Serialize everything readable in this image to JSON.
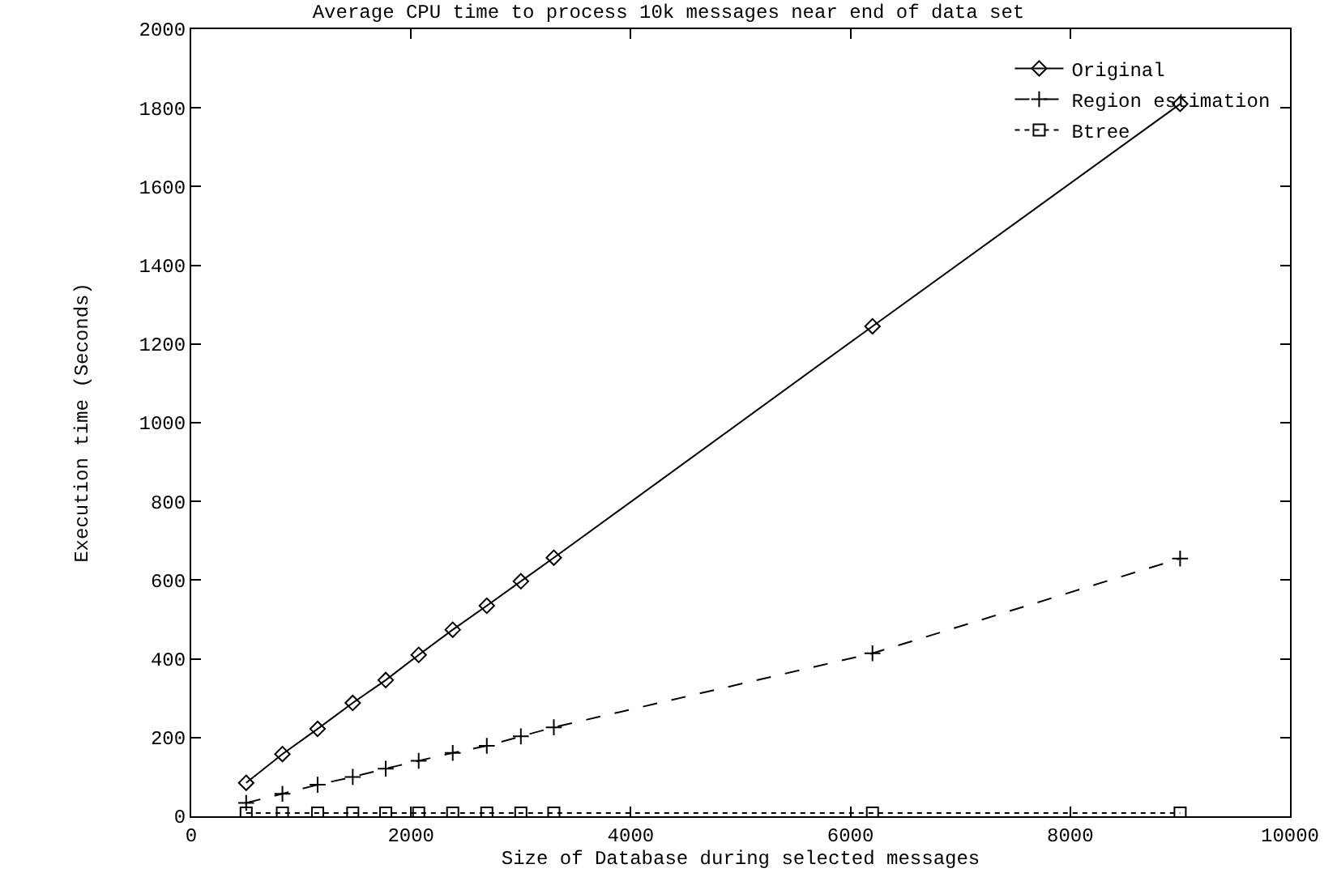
{
  "chart_data": {
    "type": "line",
    "title": "Average CPU time to process 10k messages near end of data set",
    "xlabel": "Size of Database during selected messages",
    "ylabel": "Execution time (Seconds)",
    "x": [
      500,
      830,
      1150,
      1470,
      1770,
      2070,
      2380,
      2690,
      3000,
      3300,
      6200,
      9000
    ],
    "series": [
      {
        "name": "Original",
        "color": "#000000",
        "marker": "diamond",
        "line_style": "solid",
        "values": [
          85,
          158,
          222,
          288,
          346,
          410,
          474,
          535,
          597,
          657,
          1245,
          1810
        ]
      },
      {
        "name": "Region estimation",
        "color": "#000000",
        "marker": "cross",
        "line_style": "dashed",
        "values": [
          34,
          57,
          80,
          100,
          121,
          141,
          161,
          179,
          203,
          226,
          414,
          655
        ]
      },
      {
        "name": "Btree",
        "color": "#000000",
        "marker": "square",
        "line_style": "dotted",
        "values": [
          8,
          8,
          8,
          8,
          8,
          8,
          8,
          8,
          8,
          8,
          8,
          8
        ]
      }
    ],
    "xlim": [
      0,
      10000
    ],
    "xticks": [
      0,
      2000,
      4000,
      6000,
      8000,
      10000
    ],
    "ylim": [
      0,
      2000
    ],
    "yticks": [
      0,
      200,
      400,
      600,
      800,
      1000,
      1200,
      1400,
      1600,
      1800,
      2000
    ],
    "grid": false,
    "legend": "top right"
  }
}
